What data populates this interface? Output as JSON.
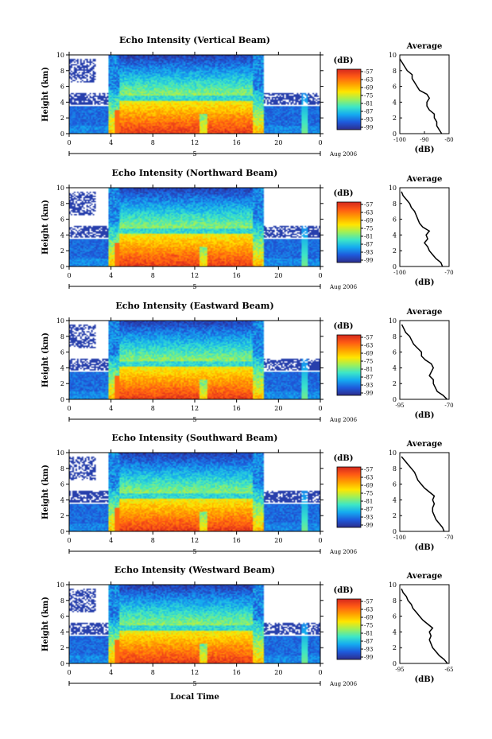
{
  "figure": {
    "xlabel": "Local Time",
    "date_label": "Aug 2006",
    "day_label": "5"
  },
  "colorbar": {
    "unit": "(dB)",
    "ticks": [
      "-57",
      "-63",
      "-69",
      "-75",
      "-81",
      "-87",
      "-93",
      "-99"
    ],
    "colors": [
      "#d4281e",
      "#ff5a14",
      "#ffa000",
      "#ffe600",
      "#9df05a",
      "#3ce6c8",
      "#14aaf0",
      "#1e5adc",
      "#2d2d8c"
    ]
  },
  "chart_data": [
    {
      "type": "heatmap",
      "title": "Echo Intensity (Vertical Beam)",
      "ylabel": "Height (km)",
      "xlim": [
        0,
        24
      ],
      "ylim": [
        0,
        10
      ],
      "xticks": [
        "0",
        "4",
        "8",
        "12",
        "16",
        "20",
        "0"
      ],
      "yticks": [
        "0",
        "2",
        "4",
        "6",
        "8",
        "10"
      ],
      "profile": {
        "title": "Average",
        "xlabel": "(dB)",
        "xlim": [
          -100,
          -80
        ],
        "xticks": [
          -100,
          -90,
          -80
        ],
        "xticklabels": [
          "-100",
          "-90",
          "-80"
        ],
        "height": [
          0,
          0.5,
          1,
          1.5,
          2,
          2.5,
          3,
          3.5,
          4,
          4.5,
          5,
          5.5,
          6,
          6.5,
          7,
          7.5,
          8,
          8.5,
          9,
          9.5
        ],
        "values": [
          -83,
          -84,
          -85,
          -85,
          -86,
          -86,
          -88,
          -89,
          -89,
          -88,
          -89,
          -92,
          -93,
          -94,
          -95,
          -95,
          -97,
          -98,
          -99,
          -100
        ]
      }
    },
    {
      "type": "heatmap",
      "title": "Echo Intensity (Northward Beam)",
      "ylabel": "Height (km)",
      "xlim": [
        0,
        24
      ],
      "ylim": [
        0,
        10
      ],
      "xticks": [
        "0",
        "4",
        "8",
        "12",
        "16",
        "20",
        "0"
      ],
      "yticks": [
        "0",
        "2",
        "4",
        "6",
        "8",
        "10"
      ],
      "profile": {
        "title": "Average",
        "xlabel": "(dB)",
        "xlim": [
          -100,
          -70
        ],
        "xticks": [
          -100,
          -70
        ],
        "xticklabels": [
          "-100",
          "-70"
        ],
        "height": [
          0,
          0.5,
          1,
          1.5,
          2,
          2.5,
          3,
          3.5,
          4,
          4.5,
          5,
          5.5,
          6,
          6.5,
          7,
          7.5,
          8,
          8.5,
          9,
          9.5
        ],
        "values": [
          -74,
          -75,
          -78,
          -80,
          -82,
          -83,
          -85,
          -83,
          -84,
          -82,
          -86,
          -88,
          -89,
          -90,
          -91,
          -93,
          -94,
          -96,
          -98,
          -99
        ]
      }
    },
    {
      "type": "heatmap",
      "title": "Echo Intensity (Eastward Beam)",
      "ylabel": "Height (km)",
      "xlim": [
        0,
        24
      ],
      "ylim": [
        0,
        10
      ],
      "xticks": [
        "0",
        "4",
        "8",
        "12",
        "16",
        "20",
        "0"
      ],
      "yticks": [
        "0",
        "2",
        "4",
        "6",
        "8",
        "10"
      ],
      "profile": {
        "title": "Average",
        "xlabel": "(dB)",
        "xlim": [
          -95,
          -70
        ],
        "xticks": [
          -95,
          -70
        ],
        "xticklabels": [
          "-95",
          "-70"
        ],
        "height": [
          0,
          0.5,
          1,
          1.5,
          2,
          2.5,
          3,
          3.5,
          4,
          4.5,
          5,
          5.5,
          6,
          6.5,
          7,
          7.5,
          8,
          8.5,
          9,
          9.5
        ],
        "values": [
          -71,
          -73,
          -76,
          -77,
          -78,
          -78,
          -80,
          -79,
          -78,
          -79,
          -82,
          -84,
          -84,
          -86,
          -88,
          -89,
          -90,
          -92,
          -93,
          -94
        ]
      }
    },
    {
      "type": "heatmap",
      "title": "Echo Intensity (Southward Beam)",
      "ylabel": "Height (km)",
      "xlim": [
        0,
        24
      ],
      "ylim": [
        0,
        10
      ],
      "xticks": [
        "0",
        "4",
        "8",
        "12",
        "16",
        "20",
        "0"
      ],
      "yticks": [
        "0",
        "2",
        "4",
        "6",
        "8",
        "10"
      ],
      "profile": {
        "title": "Average",
        "xlabel": "(dB)",
        "xlim": [
          -100,
          -70
        ],
        "xticks": [
          -100,
          -70
        ],
        "xticklabels": [
          "-100",
          "-70"
        ],
        "height": [
          0,
          0.5,
          1,
          1.5,
          2,
          2.5,
          3,
          3.5,
          4,
          4.5,
          5,
          5.5,
          6,
          6.5,
          7,
          7.5,
          8,
          8.5,
          9,
          9.5
        ],
        "values": [
          -73,
          -74,
          -76,
          -78,
          -79,
          -80,
          -80,
          -79,
          -80,
          -79,
          -82,
          -85,
          -87,
          -89,
          -90,
          -91,
          -93,
          -95,
          -97,
          -99
        ]
      }
    },
    {
      "type": "heatmap",
      "title": "Echo Intensity (Westward Beam)",
      "ylabel": "Height (km)",
      "xlim": [
        0,
        24
      ],
      "ylim": [
        0,
        10
      ],
      "xticks": [
        "0",
        "4",
        "8",
        "12",
        "16",
        "20",
        "0"
      ],
      "yticks": [
        "0",
        "2",
        "4",
        "6",
        "8",
        "10"
      ],
      "profile": {
        "title": "Average",
        "xlabel": "(dB)",
        "xlim": [
          -95,
          -65
        ],
        "xticks": [
          -95,
          -65
        ],
        "xticklabels": [
          "-95",
          "-65"
        ],
        "height": [
          0,
          0.5,
          1,
          1.5,
          2,
          2.5,
          3,
          3.5,
          4,
          4.5,
          5,
          5.5,
          6,
          6.5,
          7,
          7.5,
          8,
          8.5,
          9,
          9.5
        ],
        "values": [
          -66,
          -68,
          -71,
          -73,
          -75,
          -76,
          -77,
          -76,
          -77,
          -75,
          -78,
          -81,
          -83,
          -85,
          -87,
          -88,
          -90,
          -91,
          -93,
          -94
        ]
      }
    }
  ]
}
